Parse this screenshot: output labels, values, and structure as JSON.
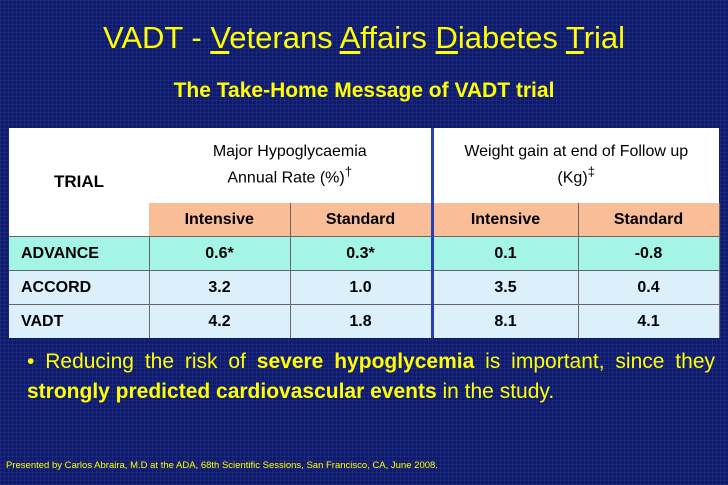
{
  "title": {
    "prefix": "VADT  - ",
    "w1_initial": "V",
    "w1_rest": "eterans ",
    "w2_initial": "A",
    "w2_rest": "ffairs ",
    "w3_initial": "D",
    "w3_rest": "iabetes ",
    "w4_initial": "T",
    "w4_rest": "rial"
  },
  "subtitle": "The Take-Home Message of VADT trial",
  "table": {
    "trial_header": "TRIAL",
    "group1_line1": "Major Hypoglycaemia",
    "group1_line2": "Annual Rate (%)",
    "group1_mark": "†",
    "group2_line1": "Weight gain at end of Follow up",
    "group2_line2": "(Kg)",
    "group2_mark": "‡",
    "sub_headers": [
      "Intensive",
      "Standard",
      "Intensive",
      "Standard"
    ],
    "rows": [
      {
        "trial": "ADVANCE",
        "values": [
          "0.6*",
          "0.3*",
          "0.1",
          "-0.8"
        ]
      },
      {
        "trial": "ACCORD",
        "values": [
          "3.2",
          "1.0",
          "3.5",
          "0.4"
        ]
      },
      {
        "trial": "VADT",
        "values": [
          "4.2",
          "1.8",
          "8.1",
          "4.1"
        ]
      }
    ]
  },
  "bullet": {
    "marker": "•",
    "t1": " Reducing the risk of ",
    "b1": "severe hypoglycemia",
    "t2": " is important, since they ",
    "b2": "strongly predicted cardiovascular events",
    "t3": " in the study."
  },
  "footer": "Presented by Carlos Abraira, M.D at the ADA, 68th Scientific Sessions, San Francisco, CA, June 2008.",
  "colors": {
    "background": "#0d1a6e",
    "text_accent": "#ffff00",
    "subheader_fill": "#f9be98",
    "row_advance_fill": "#a5f5e6",
    "row_fill": "#dcf0fb"
  }
}
